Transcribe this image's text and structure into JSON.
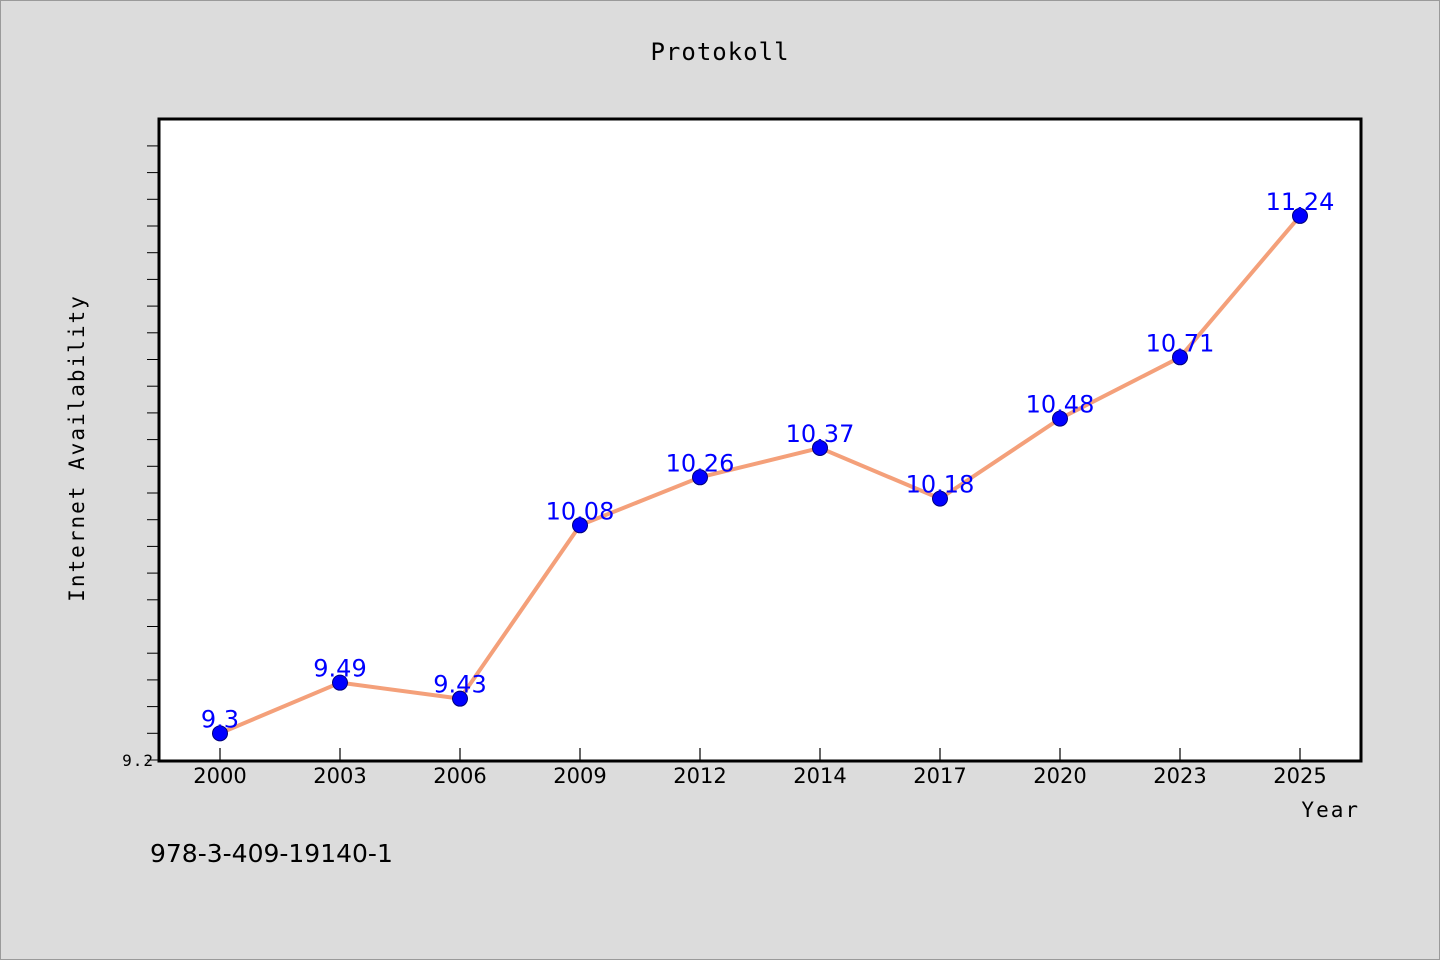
{
  "chart_data": {
    "type": "line",
    "title": "Protokoll",
    "xlabel": "Year",
    "ylabel": "Internet Availability",
    "x": [
      "2000",
      "2003",
      "2006",
      "2009",
      "2012",
      "2014",
      "2017",
      "2020",
      "2023",
      "2025"
    ],
    "series": [
      {
        "values": [
          9.3,
          9.49,
          9.43,
          10.08,
          10.26,
          10.37,
          10.18,
          10.48,
          10.71,
          11.24
        ],
        "labels": [
          "9.3",
          "9.49",
          "9.43",
          "10.08",
          "10.26",
          "10.37",
          "10.18",
          "10.48",
          "10.71",
          "11.24"
        ],
        "line_color": "#f4a07a",
        "marker_color": "#0000ff"
      }
    ],
    "ylim": [
      9.2,
      11.6
    ],
    "yticks_labeled": [
      "9.2"
    ],
    "grid": false,
    "legend": false,
    "footnote": "978-3-409-19140-1",
    "colors": {
      "background": "#dcdcdc",
      "plot_background": "#ffffff"
    }
  }
}
